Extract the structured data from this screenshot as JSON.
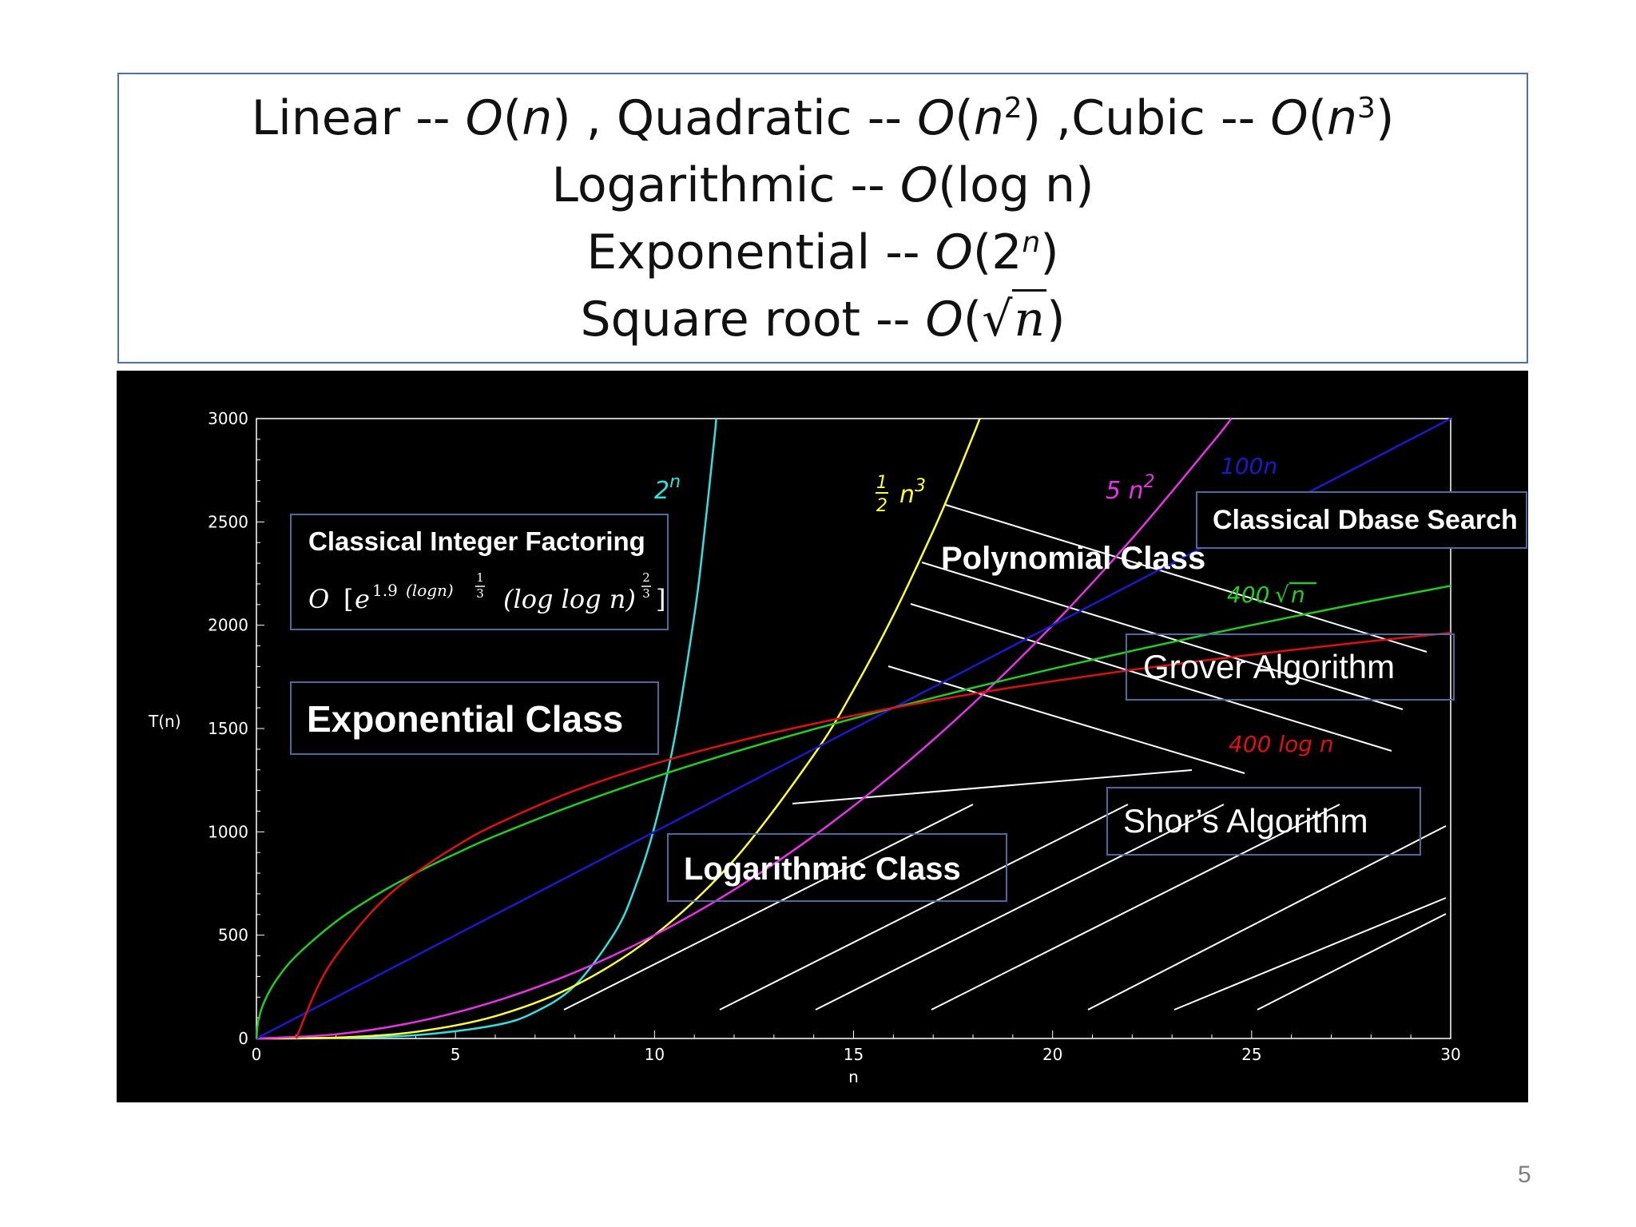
{
  "title": {
    "linear": "Linear -- ",
    "linear_o": "O",
    "linear_arg": "n",
    "quadratic": " , Quadratic -- ",
    "quadratic_o": "O",
    "quadratic_arg": "n",
    "quadratic_exp": "2",
    "cubic": " ,Cubic -- ",
    "cubic_o": "O",
    "cubic_arg": "n",
    "cubic_exp": "3",
    "logarithmic": "Logarithmic -- ",
    "logarithmic_o": "O",
    "logarithmic_arg": "log n",
    "exponential": "Exponential -- ",
    "exponential_o": "O",
    "exponential_base": "2",
    "exponential_exp": "n",
    "sqrt": "Square root -- ",
    "sqrt_o": "O",
    "sqrt_arg": "n"
  },
  "page_number": "5",
  "chart_data": {
    "type": "line",
    "title": "",
    "xlabel": "n",
    "ylabel": "T(n)",
    "xlim": [
      0,
      30
    ],
    "ylim": [
      0,
      3000
    ],
    "x_ticks": [
      "0",
      "5",
      "10",
      "15",
      "20",
      "25",
      "30"
    ],
    "y_ticks": [
      "0",
      "500",
      "1000",
      "1500",
      "2000",
      "2500",
      "3000"
    ],
    "grid": false,
    "background": "#000000",
    "axis_color": "#ffffff",
    "series": [
      {
        "name_base": "2",
        "name_sup": "n",
        "color": "#33e0e0",
        "x": [
          0,
          2,
          4,
          6,
          7,
          8,
          9,
          9.5,
          10,
          10.5,
          11,
          11.2,
          11.5,
          11.55
        ],
        "y": [
          1,
          4,
          16,
          64,
          128,
          256,
          512,
          724,
          1024,
          1448,
          2048,
          2353,
          2896,
          3000
        ]
      },
      {
        "name_frac_num": "1",
        "name_frac_den": "2",
        "name_base": "n",
        "name_sup": "3",
        "color": "#ffff33",
        "x": [
          0,
          2,
          4,
          6,
          8,
          10,
          12,
          14,
          15,
          16,
          17,
          17.5,
          18,
          18.17
        ],
        "y": [
          0,
          4,
          32,
          108,
          256,
          500,
          864,
          1372,
          1687,
          2048,
          2456,
          2680,
          2916,
          3000
        ]
      },
      {
        "name_base": "5 n",
        "name_sup": "2",
        "color": "#e633e6",
        "x": [
          0,
          2,
          4,
          6,
          8,
          10,
          12,
          14,
          16,
          18,
          20,
          22,
          24,
          24.49
        ],
        "y": [
          0,
          20,
          80,
          180,
          320,
          500,
          720,
          980,
          1280,
          1620,
          2000,
          2420,
          2880,
          3000
        ]
      },
      {
        "name": "100n",
        "color": "#1a1acc",
        "x": [
          0,
          5,
          10,
          15,
          20,
          25,
          30
        ],
        "y": [
          0,
          500,
          1000,
          1500,
          2000,
          2500,
          3000
        ]
      },
      {
        "name_base": "400 ",
        "name_rad": "n",
        "color": "#22cc22",
        "x": [
          0,
          0.05,
          0.2,
          0.5,
          1,
          2,
          3,
          4,
          5,
          6,
          8,
          10,
          12,
          14,
          16,
          18,
          20,
          22,
          24,
          26,
          28,
          30
        ],
        "y": [
          0,
          89,
          179,
          283,
          400,
          566,
          693,
          800,
          894,
          980,
          1131,
          1265,
          1386,
          1497,
          1600,
          1697,
          1789,
          1876,
          1960,
          2040,
          2117,
          2191
        ]
      },
      {
        "name": "400 log n",
        "color": "#dd1111",
        "x": [
          1,
          1.5,
          2,
          3,
          4,
          5,
          6,
          8,
          10,
          12,
          14,
          16,
          18,
          20,
          22,
          24,
          26,
          28,
          30
        ],
        "y": [
          0,
          234,
          400,
          634,
          800,
          929,
          1034,
          1200,
          1329,
          1434,
          1523,
          1600,
          1668,
          1729,
          1784,
          1834,
          1880,
          1923,
          1963
        ]
      }
    ],
    "annotations": {
      "factoring_title": "Classical Integer Factoring",
      "factoring_o": "O",
      "factoring_base": "e",
      "factoring_coef": "1.9",
      "factoring_log1": "(logn)",
      "factoring_exp1_num": "1",
      "factoring_exp1_den": "3",
      "factoring_log2": "(log log n)",
      "factoring_exp2_num": "2",
      "factoring_exp2_den": "3",
      "exponential_class": "Exponential Class",
      "polynomial_class": "Polynomial Class",
      "logarithmic_class": "Logarithmic Class",
      "dbase_search": "Classical Dbase Search",
      "grover": "Grover Algorithm",
      "shor": "Shor’s Algorithm"
    }
  }
}
